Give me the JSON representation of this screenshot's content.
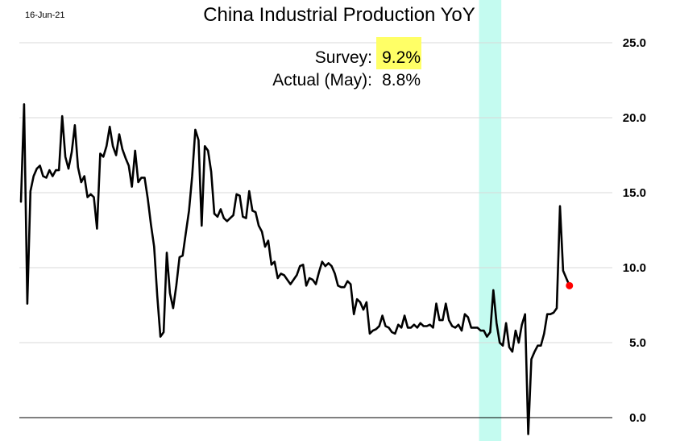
{
  "header": {
    "date": "16-Jun-21"
  },
  "chart_data": {
    "type": "line",
    "title": "China Industrial Production YoY",
    "annotation": {
      "survey_label": "Survey:",
      "survey_value": "9.2%",
      "actual_label": "Actual (May):",
      "actual_value": "8.8%"
    },
    "xlabel": "",
    "ylabel": "",
    "ylim": [
      0,
      27
    ],
    "y_ticks": [
      "0.0",
      "5.0",
      "10.0",
      "15.0",
      "20.0",
      "25.0"
    ],
    "grid": true,
    "legend": "none",
    "highlight_color": "#c4fbf0",
    "line_color": "#000000",
    "marker_color": "#ff0000",
    "highlight_from_index": 145,
    "highlight_to_index": 151,
    "marker_value": 8.8,
    "values": [
      14.4,
      20.9,
      7.6,
      15.1,
      16.1,
      16.6,
      16.8,
      16.1,
      16.0,
      16.5,
      16.1,
      16.5,
      16.5,
      20.1,
      17.4,
      16.6,
      17.7,
      19.5,
      16.7,
      15.7,
      16.1,
      14.7,
      14.9,
      14.7,
      12.6,
      17.6,
      17.4,
      18.1,
      19.4,
      18.1,
      17.5,
      18.9,
      17.9,
      17.3,
      16.8,
      15.4,
      17.8,
      15.7,
      16.0,
      16.0,
      14.6,
      12.9,
      11.4,
      8.1,
      5.4,
      5.7,
      11.0,
      8.3,
      7.3,
      8.8,
      10.7,
      10.8,
      12.3,
      13.8,
      16.1,
      19.2,
      18.5,
      12.8,
      18.1,
      17.8,
      16.4,
      13.6,
      13.4,
      13.9,
      13.3,
      13.1,
      13.3,
      13.5,
      14.9,
      14.8,
      13.4,
      13.3,
      15.1,
      13.8,
      13.7,
      12.8,
      12.4,
      11.4,
      11.8,
      10.2,
      10.4,
      9.3,
      9.6,
      9.5,
      9.2,
      8.9,
      9.2,
      9.5,
      10.1,
      10.2,
      8.8,
      9.3,
      9.2,
      8.9,
      9.7,
      10.4,
      10.1,
      10.3,
      10.1,
      9.6,
      8.8,
      8.7,
      8.7,
      9.1,
      8.9,
      6.9,
      7.9,
      7.7,
      7.2,
      7.7,
      5.6,
      5.8,
      5.9,
      6.1,
      6.8,
      6.1,
      6.0,
      5.7,
      5.6,
      6.2,
      6.0,
      6.8,
      6.0,
      6.0,
      6.2,
      6.0,
      6.3,
      6.1,
      6.1,
      6.2,
      6.0,
      7.6,
      6.5,
      6.5,
      7.6,
      6.5,
      6.1,
      6.0,
      6.2,
      5.8,
      6.9,
      6.7,
      6.0,
      6.0,
      6.0,
      5.8,
      5.8,
      5.4,
      5.7,
      8.5,
      6.3,
      5.0,
      4.8,
      6.3,
      4.7,
      4.4,
      5.8,
      5.0,
      6.2,
      6.9,
      -1.1,
      3.9,
      4.4,
      4.8,
      4.8,
      5.6,
      6.9,
      6.9,
      7.0,
      7.3,
      14.1,
      9.8,
      9.3,
      8.8
    ]
  }
}
